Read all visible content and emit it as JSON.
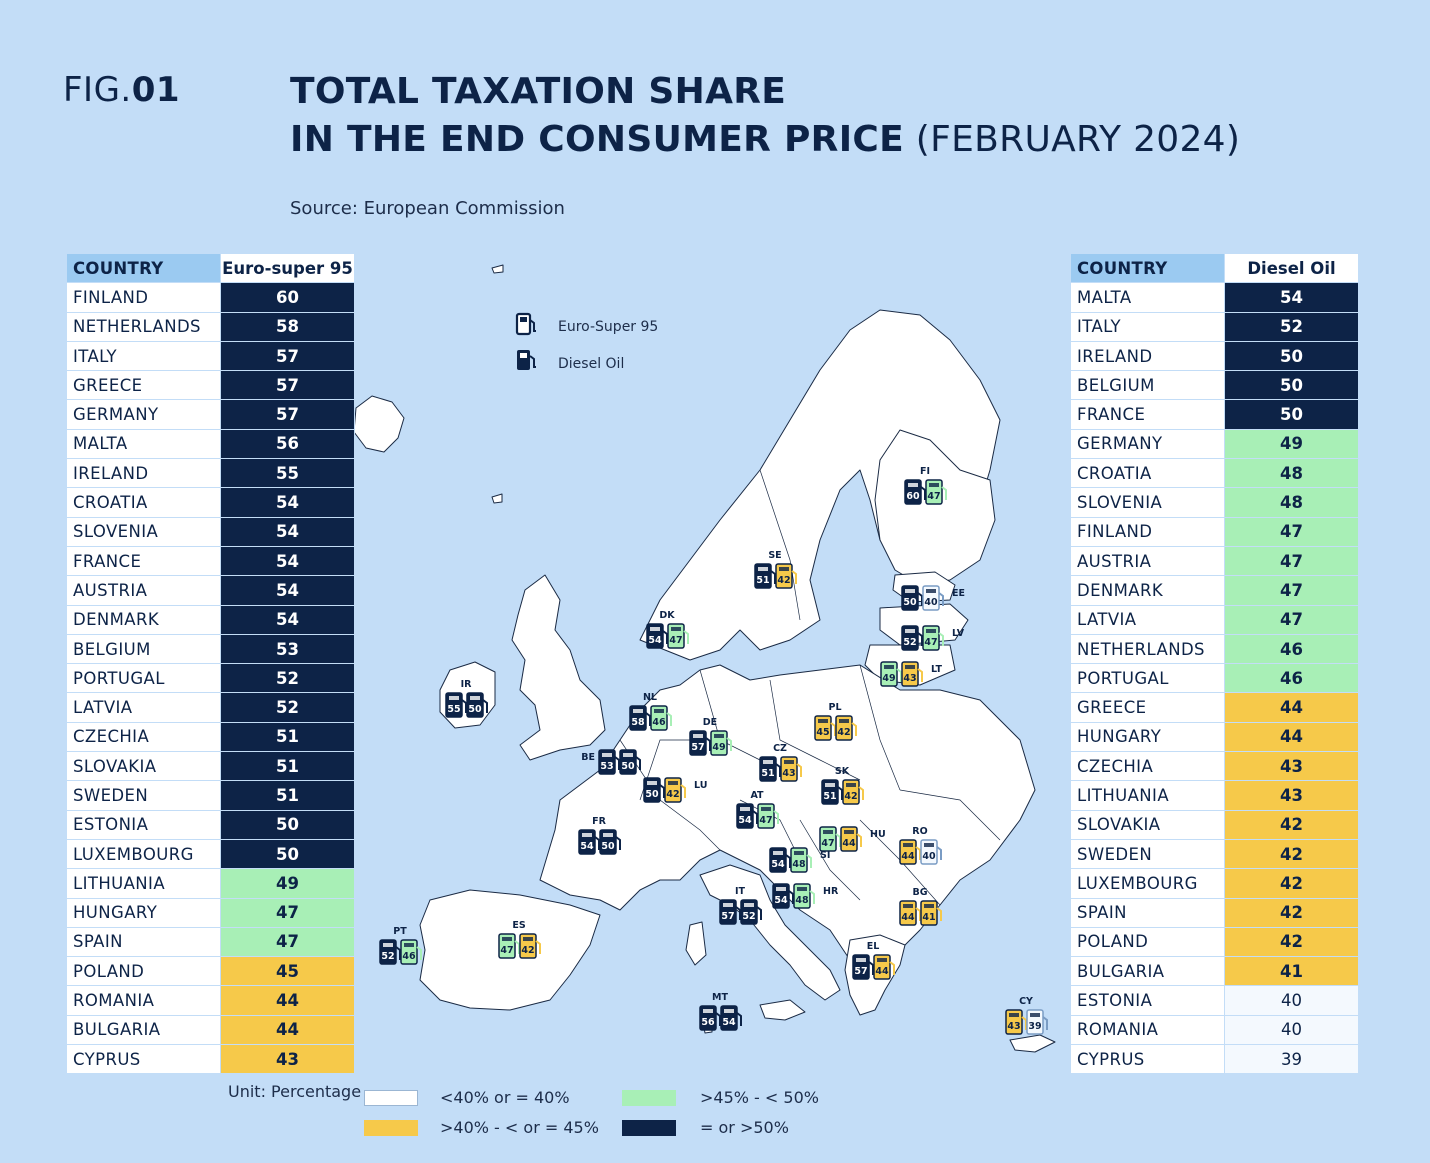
{
  "header": {
    "fig_prefix": "FIG.",
    "fig_number": "01",
    "title_line1": "TOTAL TAXATION SHARE",
    "title_line2_bold": "IN THE END CONSUMER PRICE",
    "title_line2_light": " (FEBRUARY 2024)",
    "source": "Source: European Commission"
  },
  "colors": {
    "dark": "#0d2347",
    "green": "#a8efb6",
    "yellow": "#f6c94a",
    "white": "#ffffff",
    "header_blue": "#9bcaf1",
    "sea": "#c3ddf7"
  },
  "left_table": {
    "header_country": "COUNTRY",
    "header_value": "Euro-super 95",
    "rows": [
      {
        "country": "FINLAND",
        "value": "60",
        "level": "dark"
      },
      {
        "country": "NETHERLANDS",
        "value": "58",
        "level": "dark"
      },
      {
        "country": "ITALY",
        "value": "57",
        "level": "dark"
      },
      {
        "country": "GREECE",
        "value": "57",
        "level": "dark"
      },
      {
        "country": "GERMANY",
        "value": "57",
        "level": "dark"
      },
      {
        "country": "MALTA",
        "value": "56",
        "level": "dark"
      },
      {
        "country": "IRELAND",
        "value": "55",
        "level": "dark"
      },
      {
        "country": "CROATIA",
        "value": "54",
        "level": "dark"
      },
      {
        "country": "SLOVENIA",
        "value": "54",
        "level": "dark"
      },
      {
        "country": "FRANCE",
        "value": "54",
        "level": "dark"
      },
      {
        "country": "AUSTRIA",
        "value": "54",
        "level": "dark"
      },
      {
        "country": "DENMARK",
        "value": "54",
        "level": "dark"
      },
      {
        "country": "BELGIUM",
        "value": "53",
        "level": "dark"
      },
      {
        "country": "PORTUGAL",
        "value": "52",
        "level": "dark"
      },
      {
        "country": "LATVIA",
        "value": "52",
        "level": "dark"
      },
      {
        "country": "CZECHIA",
        "value": "51",
        "level": "dark"
      },
      {
        "country": "SLOVAKIA",
        "value": "51",
        "level": "dark"
      },
      {
        "country": "SWEDEN",
        "value": "51",
        "level": "dark"
      },
      {
        "country": "ESTONIA",
        "value": "50",
        "level": "dark"
      },
      {
        "country": "LUXEMBOURG",
        "value": "50",
        "level": "dark"
      },
      {
        "country": "LITHUANIA",
        "value": "49",
        "level": "green"
      },
      {
        "country": "HUNGARY",
        "value": "47",
        "level": "green"
      },
      {
        "country": "SPAIN",
        "value": "47",
        "level": "green"
      },
      {
        "country": "POLAND",
        "value": "45",
        "level": "yellow"
      },
      {
        "country": "ROMANIA",
        "value": "44",
        "level": "yellow"
      },
      {
        "country": "BULGARIA",
        "value": "44",
        "level": "yellow"
      },
      {
        "country": "CYPRUS",
        "value": "43",
        "level": "yellow"
      }
    ]
  },
  "right_table": {
    "header_country": "COUNTRY",
    "header_value": "Diesel Oil",
    "rows": [
      {
        "country": "MALTA",
        "value": "54",
        "level": "dark"
      },
      {
        "country": "ITALY",
        "value": "52",
        "level": "dark"
      },
      {
        "country": "IRELAND",
        "value": "50",
        "level": "dark"
      },
      {
        "country": "BELGIUM",
        "value": "50",
        "level": "dark"
      },
      {
        "country": "FRANCE",
        "value": "50",
        "level": "dark"
      },
      {
        "country": "GERMANY",
        "value": "49",
        "level": "green"
      },
      {
        "country": "CROATIA",
        "value": "48",
        "level": "green"
      },
      {
        "country": "SLOVENIA",
        "value": "48",
        "level": "green"
      },
      {
        "country": "FINLAND",
        "value": "47",
        "level": "green"
      },
      {
        "country": "AUSTRIA",
        "value": "47",
        "level": "green"
      },
      {
        "country": "DENMARK",
        "value": "47",
        "level": "green"
      },
      {
        "country": "LATVIA",
        "value": "47",
        "level": "green"
      },
      {
        "country": "NETHERLANDS",
        "value": "46",
        "level": "green"
      },
      {
        "country": "PORTUGAL",
        "value": "46",
        "level": "green"
      },
      {
        "country": "GREECE",
        "value": "44",
        "level": "yellow"
      },
      {
        "country": "HUNGARY",
        "value": "44",
        "level": "yellow"
      },
      {
        "country": "CZECHIA",
        "value": "43",
        "level": "yellow"
      },
      {
        "country": "LITHUANIA",
        "value": "43",
        "level": "yellow"
      },
      {
        "country": "SLOVAKIA",
        "value": "42",
        "level": "yellow"
      },
      {
        "country": "SWEDEN",
        "value": "42",
        "level": "yellow"
      },
      {
        "country": "LUXEMBOURG",
        "value": "42",
        "level": "yellow"
      },
      {
        "country": "SPAIN",
        "value": "42",
        "level": "yellow"
      },
      {
        "country": "POLAND",
        "value": "42",
        "level": "yellow"
      },
      {
        "country": "BULGARIA",
        "value": "41",
        "level": "yellow"
      },
      {
        "country": "ESTONIA",
        "value": "40",
        "level": "white"
      },
      {
        "country": "ROMANIA",
        "value": "40",
        "level": "white"
      },
      {
        "country": "CYPRUS",
        "value": "39",
        "level": "white"
      }
    ]
  },
  "map_legend": {
    "euro_label": "Euro-Super 95",
    "diesel_label": "Diesel Oil",
    "euro_icon": "fuel-pump-outline-icon",
    "diesel_icon": "fuel-pump-filled-icon"
  },
  "map_markers": [
    {
      "code": "FI",
      "euro": "60",
      "diesel": "47"
    },
    {
      "code": "SE",
      "euro": "51",
      "diesel": "42"
    },
    {
      "code": "EE",
      "euro": "50",
      "diesel": "40"
    },
    {
      "code": "LV",
      "euro": "52",
      "diesel": "47"
    },
    {
      "code": "LT",
      "euro": "49",
      "diesel": "43"
    },
    {
      "code": "DK",
      "euro": "54",
      "diesel": "47"
    },
    {
      "code": "IR",
      "euro": "55",
      "diesel": "50"
    },
    {
      "code": "NL",
      "euro": "58",
      "diesel": "46"
    },
    {
      "code": "BE",
      "euro": "53",
      "diesel": "50"
    },
    {
      "code": "LU",
      "euro": "50",
      "diesel": "42"
    },
    {
      "code": "DE",
      "euro": "57",
      "diesel": "49"
    },
    {
      "code": "PL",
      "euro": "45",
      "diesel": "42"
    },
    {
      "code": "CZ",
      "euro": "51",
      "diesel": "43"
    },
    {
      "code": "SK",
      "euro": "51",
      "diesel": "42"
    },
    {
      "code": "AT",
      "euro": "54",
      "diesel": "47"
    },
    {
      "code": "SI",
      "euro": "54",
      "diesel": "48"
    },
    {
      "code": "HR",
      "euro": "54",
      "diesel": "48"
    },
    {
      "code": "HU",
      "euro": "47",
      "diesel": "44"
    },
    {
      "code": "RO",
      "euro": "44",
      "diesel": "40"
    },
    {
      "code": "BG",
      "euro": "44",
      "diesel": "41"
    },
    {
      "code": "FR",
      "euro": "54",
      "diesel": "50"
    },
    {
      "code": "IT",
      "euro": "57",
      "diesel": "52"
    },
    {
      "code": "ES",
      "euro": "47",
      "diesel": "42"
    },
    {
      "code": "PT",
      "euro": "52",
      "diesel": "46"
    },
    {
      "code": "EL",
      "euro": "57",
      "diesel": "44"
    },
    {
      "code": "MT",
      "euro": "56",
      "diesel": "54"
    },
    {
      "code": "CY",
      "euro": "43",
      "diesel": "39"
    }
  ],
  "footer": {
    "unit": "Unit: Percentage",
    "legend": [
      {
        "label": "<40% or = 40%",
        "level": "white"
      },
      {
        "label": ">40% - < or = 45%",
        "level": "yellow"
      },
      {
        "label": ">45% - < 50%",
        "level": "green"
      },
      {
        "label": "= or >50%",
        "level": "dark"
      }
    ]
  }
}
